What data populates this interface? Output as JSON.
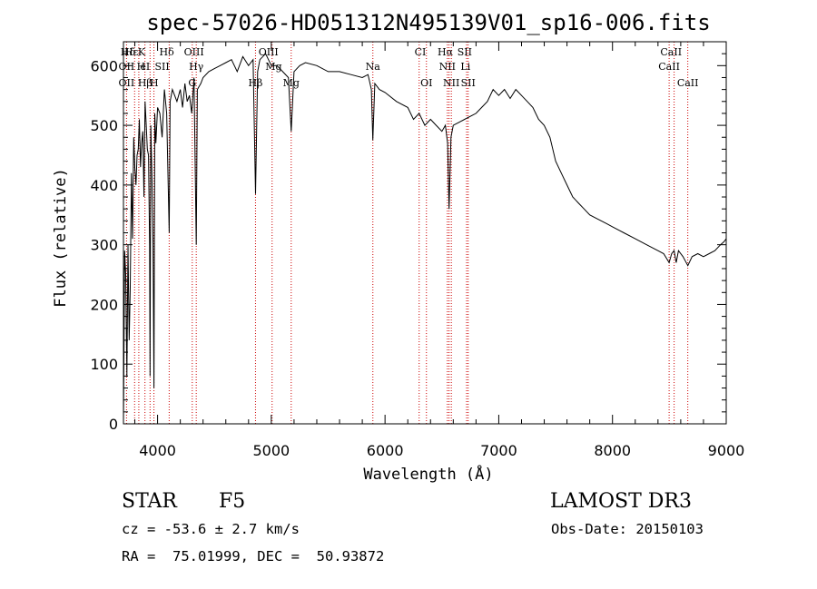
{
  "chart_data": {
    "type": "line",
    "title": "spec-57026-HD051312N495139V01_sp16-006.fits",
    "xlabel": "Wavelength (Å)",
    "ylabel": "Flux (relative)",
    "xlim": [
      3700,
      9000
    ],
    "ylim": [
      0,
      640
    ],
    "x_ticks": [
      4000,
      5000,
      6000,
      7000,
      8000,
      9000
    ],
    "y_ticks": [
      0,
      100,
      200,
      300,
      400,
      500,
      600
    ],
    "grid": false,
    "series": [
      {
        "name": "spectrum",
        "x": [
          3700,
          3710,
          3720,
          3730,
          3740,
          3750,
          3760,
          3770,
          3780,
          3790,
          3800,
          3810,
          3820,
          3830,
          3840,
          3850,
          3860,
          3870,
          3880,
          3890,
          3900,
          3910,
          3920,
          3930,
          3934,
          3940,
          3950,
          3960,
          3968,
          3975,
          3985,
          4000,
          4020,
          4040,
          4060,
          4080,
          4102,
          4110,
          4130,
          4150,
          4170,
          4200,
          4220,
          4240,
          4260,
          4280,
          4300,
          4320,
          4340,
          4350,
          4380,
          4400,
          4450,
          4500,
          4550,
          4600,
          4650,
          4700,
          4750,
          4800,
          4840,
          4861,
          4880,
          4900,
          4950,
          5000,
          5050,
          5100,
          5150,
          5175,
          5200,
          5250,
          5300,
          5400,
          5500,
          5600,
          5700,
          5800,
          5850,
          5880,
          5893,
          5910,
          5950,
          6000,
          6100,
          6200,
          6250,
          6300,
          6350,
          6400,
          6450,
          6500,
          6530,
          6550,
          6563,
          6580,
          6600,
          6650,
          6700,
          6750,
          6800,
          6850,
          6900,
          6950,
          7000,
          7050,
          7100,
          7150,
          7200,
          7250,
          7300,
          7350,
          7400,
          7450,
          7500,
          7550,
          7600,
          7650,
          7700,
          7750,
          7800,
          7850,
          7900,
          7950,
          8000,
          8100,
          8200,
          8300,
          8400,
          8450,
          8498,
          8520,
          8542,
          8560,
          8580,
          8620,
          8662,
          8700,
          8750,
          8800,
          8850,
          8900,
          8950,
          8980,
          9000
        ],
        "y": [
          0,
          290,
          250,
          80,
          300,
          140,
          230,
          420,
          310,
          480,
          430,
          400,
          450,
          460,
          510,
          430,
          470,
          490,
          380,
          540,
          500,
          460,
          450,
          300,
          80,
          500,
          420,
          300,
          60,
          520,
          470,
          530,
          520,
          480,
          560,
          520,
          320,
          540,
          560,
          550,
          540,
          560,
          530,
          570,
          540,
          550,
          520,
          580,
          300,
          560,
          570,
          580,
          590,
          595,
          600,
          605,
          610,
          590,
          615,
          600,
          610,
          385,
          590,
          610,
          620,
          600,
          600,
          590,
          580,
          490,
          590,
          600,
          605,
          600,
          590,
          590,
          585,
          580,
          585,
          560,
          475,
          570,
          560,
          555,
          540,
          530,
          510,
          520,
          500,
          510,
          500,
          490,
          500,
          470,
          360,
          480,
          500,
          505,
          510,
          515,
          520,
          530,
          540,
          560,
          550,
          560,
          545,
          560,
          550,
          540,
          530,
          510,
          500,
          480,
          440,
          420,
          400,
          380,
          370,
          360,
          350,
          345,
          340,
          335,
          330,
          320,
          310,
          300,
          290,
          285,
          270,
          285,
          290,
          270,
          290,
          280,
          265,
          280,
          285,
          280,
          285,
          290,
          300,
          305,
          310
        ]
      }
    ],
    "line_markers": [
      {
        "label": "Hδ",
        "x": 3740,
        "row": 1
      },
      {
        "label": "Hε",
        "x": 3770,
        "row": 1
      },
      {
        "label": "K",
        "x": 3860,
        "row": 1
      },
      {
        "label": "Hδ",
        "x": 4080,
        "row": 1
      },
      {
        "label": "OIII",
        "x": 4320,
        "row": 1
      },
      {
        "label": "OIII",
        "x": 4975,
        "row": 1
      },
      {
        "label": "CI",
        "x": 6310,
        "row": 1
      },
      {
        "label": "Hα",
        "x": 6530,
        "row": 1
      },
      {
        "label": "SII",
        "x": 6700,
        "row": 1
      },
      {
        "label": "CaII",
        "x": 8515,
        "row": 1
      },
      {
        "label": "OII",
        "x": 3727,
        "row": 2
      },
      {
        "label": "H",
        "x": 3855,
        "row": 2
      },
      {
        "label": "eI",
        "x": 3890,
        "row": 2
      },
      {
        "label": "SII",
        "x": 4040,
        "row": 2
      },
      {
        "label": "Hγ",
        "x": 4340,
        "row": 2
      },
      {
        "label": "Mg",
        "x": 5020,
        "row": 2
      },
      {
        "label": "Na",
        "x": 5893,
        "row": 2
      },
      {
        "label": "NII",
        "x": 6548,
        "row": 2
      },
      {
        "label": "Li",
        "x": 6708,
        "row": 2
      },
      {
        "label": "CaII",
        "x": 8498,
        "row": 2
      },
      {
        "label": "OII",
        "x": 3727,
        "row": 3
      },
      {
        "label": "Hβ",
        "x": 3890,
        "row": 3
      },
      {
        "label": "H",
        "x": 3970,
        "row": 3
      },
      {
        "label": "G",
        "x": 4305,
        "row": 3
      },
      {
        "label": "Hβ",
        "x": 4861,
        "row": 3
      },
      {
        "label": "Mg",
        "x": 5175,
        "row": 3
      },
      {
        "label": "OI",
        "x": 6364,
        "row": 3
      },
      {
        "label": "NII",
        "x": 6583,
        "row": 3
      },
      {
        "label": "SII",
        "x": 6731,
        "row": 3
      },
      {
        "label": "CaII",
        "x": 8662,
        "row": 3
      }
    ],
    "marker_lines_x": [
      3727,
      3798,
      3835,
      3889,
      3934,
      3968,
      4102,
      4305,
      4340,
      4861,
      5007,
      5175,
      5893,
      6300,
      6364,
      6548,
      6563,
      6583,
      6717,
      6731,
      8498,
      8542,
      8662
    ],
    "colors": {
      "line": "#000000",
      "marker": "#cc0000",
      "axes": "#000000"
    }
  },
  "info": {
    "object_type": "STAR",
    "subclass": "F5",
    "survey": "LAMOST DR3",
    "cz": "cz = -53.6 ± 2.7 km/s",
    "obs_date": "Obs-Date: 20150103",
    "radec": "RA =  75.01999, DEC =  50.93872"
  }
}
